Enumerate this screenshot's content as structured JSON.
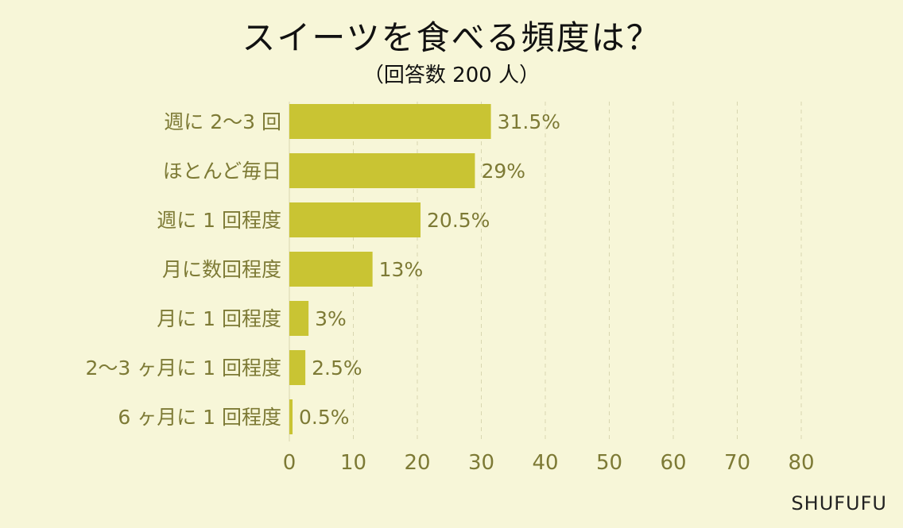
{
  "chart_data": {
    "type": "bar",
    "orientation": "horizontal",
    "title": "スイーツを食べる頻度は？",
    "subtitle": "（回答数 200 人）",
    "categories": [
      "週に 2〜3 回",
      "ほとんど毎日",
      "週に 1 回程度",
      "月に数回程度",
      "月に 1 回程度",
      "2〜3 ヶ月に 1 回程度",
      "6 ヶ月に 1 回程度"
    ],
    "values": [
      31.5,
      29,
      20.5,
      13,
      3,
      2.5,
      0.5
    ],
    "value_labels": [
      "31.5%",
      "29%",
      "20.5%",
      "13%",
      "3%",
      "2.5%",
      "0.5%"
    ],
    "xlim": [
      0,
      80
    ],
    "xticks": [
      "0",
      "10",
      "20",
      "30",
      "40",
      "50",
      "60",
      "70",
      "80"
    ],
    "grid": true,
    "colors": {
      "bar": "#c9c433",
      "text": "#7d7a35",
      "grid": "#d8d6b0",
      "background": "#f7f6d8"
    }
  },
  "brand": "SHUFUFU"
}
